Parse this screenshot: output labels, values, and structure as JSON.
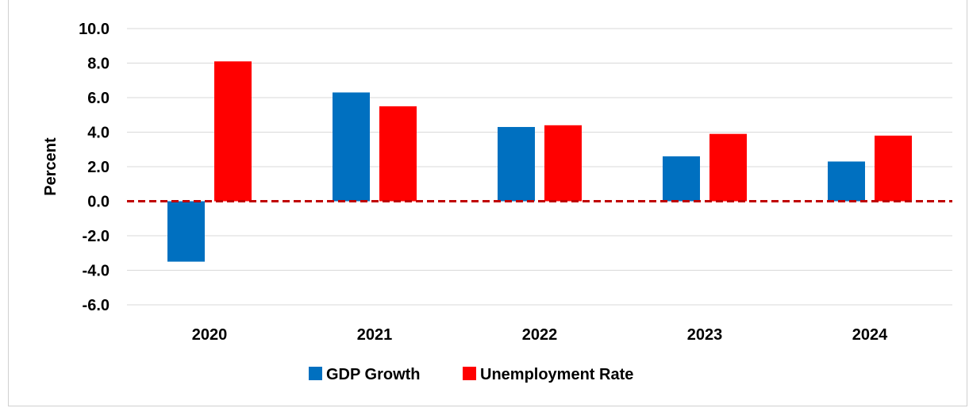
{
  "title_fragment": "), (",
  "chart_data": {
    "type": "bar",
    "categories": [
      "2020",
      "2021",
      "2022",
      "2023",
      "2024"
    ],
    "series": [
      {
        "name": "GDP Growth",
        "color": "#0070C0",
        "values": [
          -3.5,
          6.3,
          4.3,
          2.6,
          2.3
        ]
      },
      {
        "name": "Unemployment Rate",
        "color": "#FF0000",
        "values": [
          8.1,
          5.5,
          4.4,
          3.9,
          3.8
        ]
      }
    ],
    "ylabel": "Percent",
    "xlabel": "",
    "ylim": [
      -6,
      10
    ],
    "yticks": [
      "10.0",
      "8.0",
      "6.0",
      "4.0",
      "2.0",
      "0.0",
      "-2.0",
      "-4.0",
      "-6.0"
    ],
    "ytick_values": [
      10,
      8,
      6,
      4,
      2,
      0,
      -2,
      -4,
      -6
    ],
    "zero_line_color": "#C00000",
    "grid": true,
    "legend_position": "bottom"
  }
}
